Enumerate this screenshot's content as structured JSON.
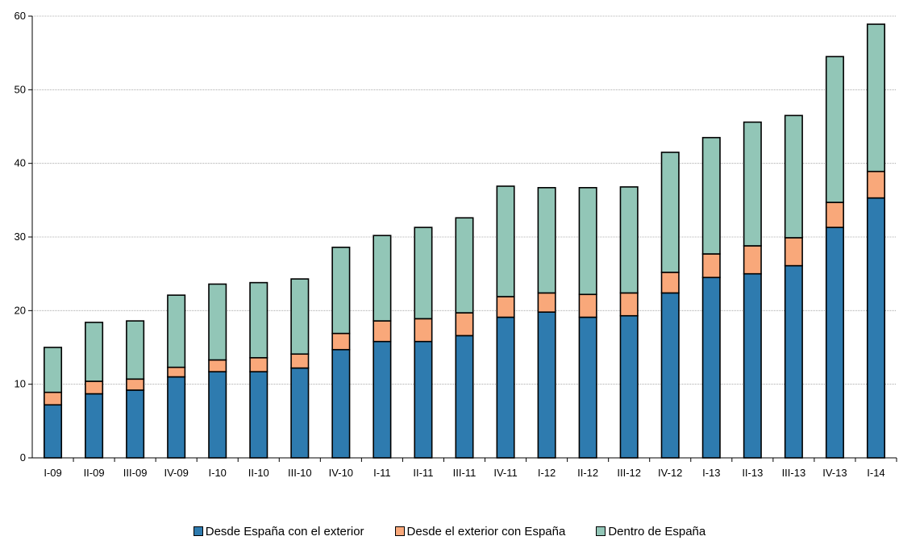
{
  "chart_data": {
    "type": "bar",
    "stacked": true,
    "title": "",
    "xlabel": "",
    "ylabel": "",
    "ylim": [
      0,
      60
    ],
    "yticks": [
      0,
      10,
      20,
      30,
      40,
      50,
      60
    ],
    "grid": true,
    "legend_position": "bottom",
    "categories": [
      "I-09",
      "II-09",
      "III-09",
      "IV-09",
      "I-10",
      "II-10",
      "III-10",
      "IV-10",
      "I-11",
      "II-11",
      "III-11",
      "IV-11",
      "I-12",
      "II-12",
      "III-12",
      "IV-12",
      "I-13",
      "II-13",
      "III-13",
      "IV-13",
      "I-14"
    ],
    "series": [
      {
        "name": "Desde España con el exterior",
        "color": "#2E7BAF",
        "values": [
          7.2,
          8.7,
          9.2,
          11.0,
          11.7,
          11.7,
          12.2,
          14.7,
          15.8,
          15.8,
          16.6,
          19.1,
          19.8,
          19.1,
          19.3,
          22.4,
          24.5,
          25.0,
          26.1,
          31.3,
          35.3
        ]
      },
      {
        "name": "Desde el exterior con España",
        "color": "#F9A87A",
        "values": [
          1.7,
          1.7,
          1.5,
          1.3,
          1.6,
          1.9,
          1.9,
          2.2,
          2.8,
          3.1,
          3.1,
          2.8,
          2.6,
          3.1,
          3.1,
          2.8,
          3.2,
          3.8,
          3.8,
          3.4,
          3.6
        ]
      },
      {
        "name": "Dentro de España",
        "color": "#92C6B7",
        "values": [
          6.1,
          8.0,
          7.9,
          9.8,
          10.3,
          10.2,
          10.2,
          11.7,
          11.6,
          12.4,
          12.9,
          15.0,
          14.3,
          14.5,
          14.4,
          16.3,
          15.8,
          16.8,
          16.6,
          19.8,
          20.0
        ]
      }
    ]
  }
}
